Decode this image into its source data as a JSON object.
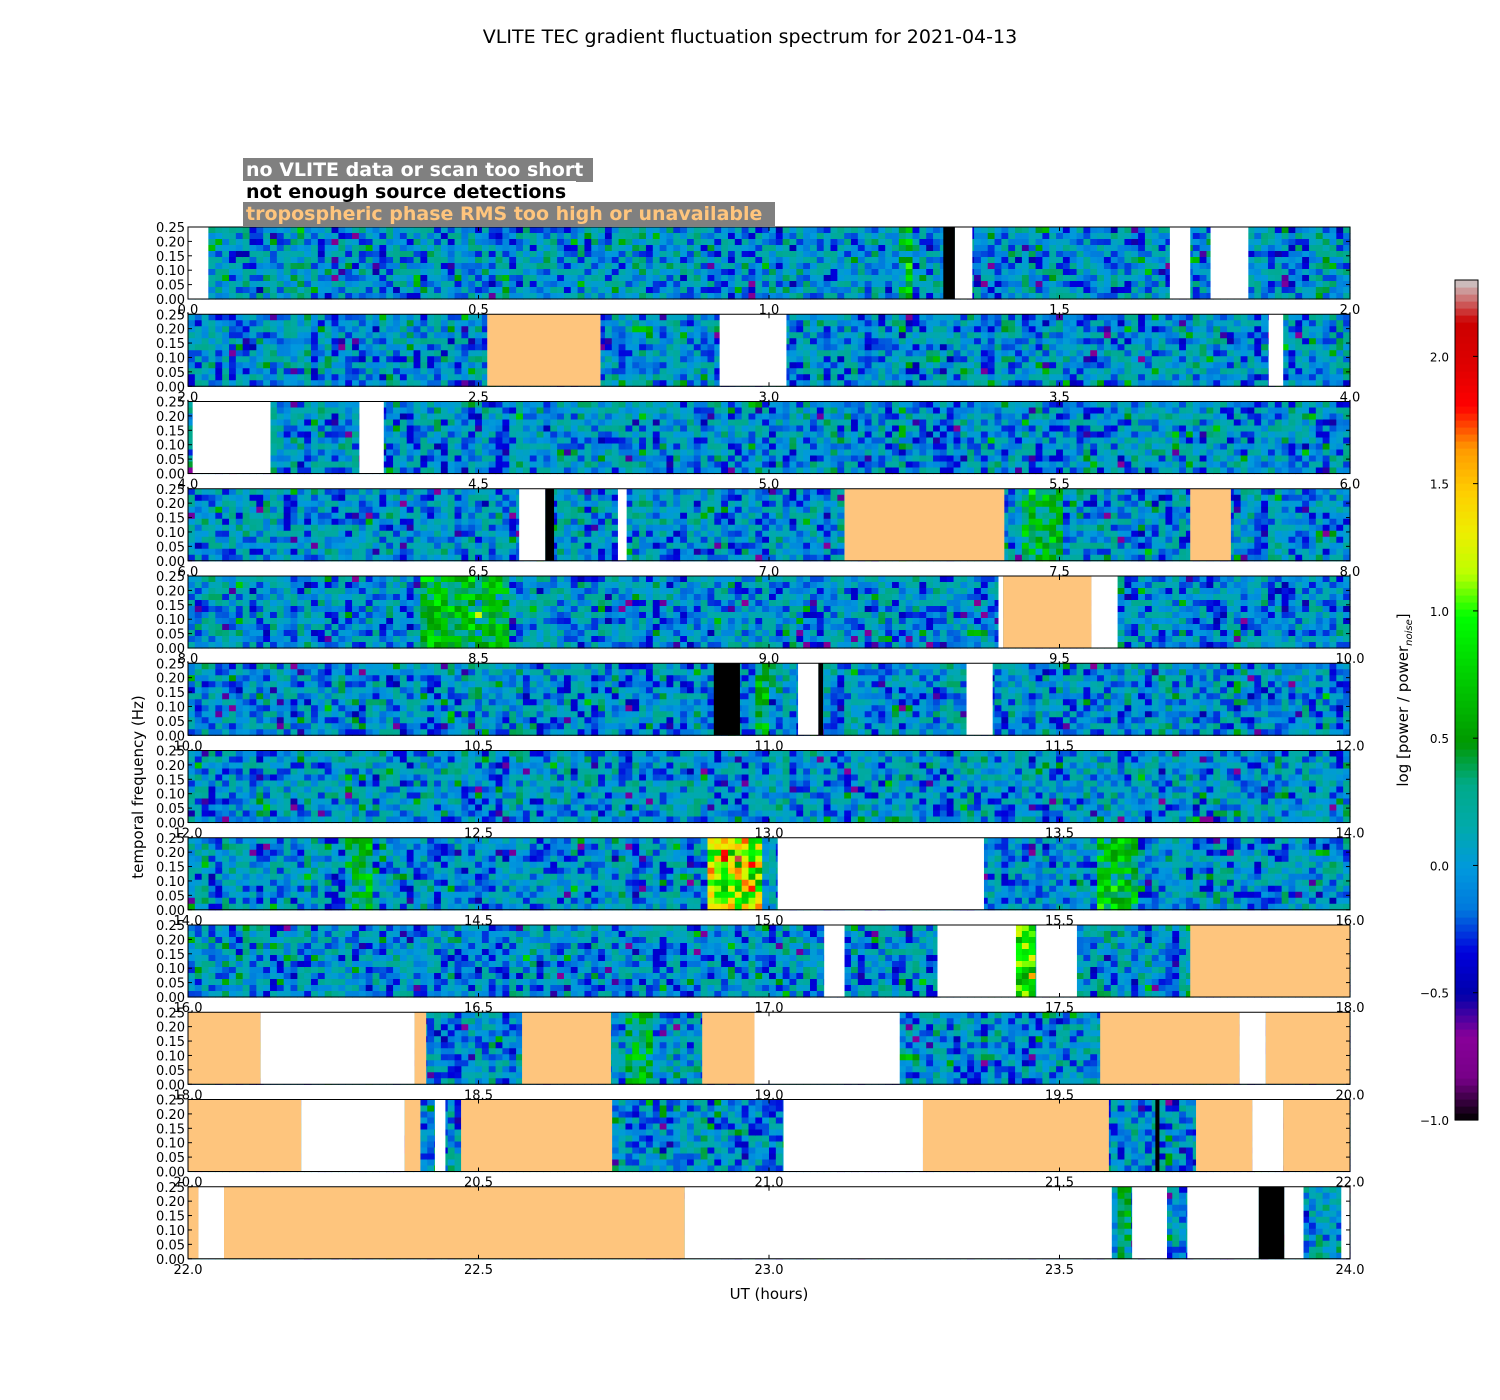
{
  "chart_data": {
    "type": "heatmap",
    "title": "VLITE TEC gradient fluctuation spectrum for 2021-04-13",
    "xlabel": "UT (hours)",
    "ylabel": "temporal frequency (Hz)",
    "ylim": [
      0,
      0.25
    ],
    "y_ticks": [
      "0.00",
      "0.05",
      "0.10",
      "0.15",
      "0.20",
      "0.25"
    ],
    "colorbar": {
      "label": "log [power / power",
      "label_subscript": "noise",
      "label_end": "]",
      "range": [
        -1.0,
        2.3
      ],
      "ticks": [
        "−1.0",
        "−0.5",
        "0.0",
        "0.5",
        "1.0",
        "1.5",
        "2.0"
      ],
      "colormap": "nipy_spectral"
    },
    "legend": [
      {
        "label": "no VLITE data or scan too short",
        "text_color": "#ffffff",
        "box_color": "#808080"
      },
      {
        "label": "not enough source detections",
        "text_color": "#000000",
        "box_color": "#ffffff"
      },
      {
        "label": "tropospheric phase RMS too high or unavailable",
        "text_color": "#ffc57d",
        "box_color": "#808080"
      }
    ],
    "flag_colors": {
      "no_data": "#ffffff",
      "few_detections": "#000000",
      "tropo_rms": "#fec57d"
    },
    "panels": [
      {
        "x_ticks": [
          "0.0",
          "0.5",
          "1.0",
          "1.5",
          "2.0"
        ],
        "range": [
          0,
          2
        ],
        "flags": [
          [
            0.0,
            0.035,
            "no_data"
          ],
          [
            1.3,
            1.32,
            "few_detections"
          ],
          [
            1.32,
            1.35,
            "no_data"
          ],
          [
            1.69,
            1.725,
            "no_data"
          ],
          [
            1.76,
            1.825,
            "no_data"
          ]
        ]
      },
      {
        "x_ticks": [
          "2.0",
          "2.5",
          "3.0",
          "3.5",
          "4.0"
        ],
        "range": [
          2,
          4
        ],
        "flags": [
          [
            2.515,
            2.71,
            "tropo_rms"
          ],
          [
            2.915,
            3.03,
            "no_data"
          ],
          [
            3.86,
            3.885,
            "no_data"
          ]
        ]
      },
      {
        "x_ticks": [
          "4.0",
          "4.5",
          "5.0",
          "5.5",
          "6.0"
        ],
        "range": [
          4,
          6
        ],
        "flags": [
          [
            4.008,
            4.142,
            "no_data"
          ],
          [
            4.295,
            4.337,
            "no_data"
          ]
        ]
      },
      {
        "x_ticks": [
          "6.0",
          "6.5",
          "7.0",
          "7.5",
          "8.0"
        ],
        "range": [
          6,
          8
        ],
        "flags": [
          [
            6.57,
            6.615,
            "no_data"
          ],
          [
            6.615,
            6.63,
            "few_detections"
          ],
          [
            6.74,
            6.755,
            "no_data"
          ],
          [
            7.13,
            7.405,
            "tropo_rms"
          ],
          [
            7.725,
            7.795,
            "tropo_rms"
          ]
        ]
      },
      {
        "x_ticks": [
          "8.0",
          "8.5",
          "9.0",
          "9.5",
          "10.0"
        ],
        "range": [
          8,
          10
        ],
        "flags": [
          [
            9.395,
            9.403,
            "no_data"
          ],
          [
            9.403,
            9.555,
            "tropo_rms"
          ],
          [
            9.555,
            9.6,
            "no_data"
          ]
        ]
      },
      {
        "x_ticks": [
          "10.0",
          "10.5",
          "11.0",
          "11.5",
          "12.0"
        ],
        "range": [
          10,
          12
        ],
        "flags": [
          [
            10.905,
            10.95,
            "few_detections"
          ],
          [
            11.05,
            11.085,
            "no_data"
          ],
          [
            11.085,
            11.093,
            "few_detections"
          ],
          [
            11.34,
            11.385,
            "no_data"
          ]
        ]
      },
      {
        "x_ticks": [
          "12.0",
          "12.5",
          "13.0",
          "13.5",
          "14.0"
        ],
        "range": [
          12,
          14
        ],
        "flags": []
      },
      {
        "x_ticks": [
          "14.0",
          "14.5",
          "15.0",
          "15.5",
          "16.0"
        ],
        "range": [
          14,
          16
        ],
        "flags": [
          [
            15.015,
            15.37,
            "no_data"
          ]
        ]
      },
      {
        "x_ticks": [
          "16.0",
          "16.5",
          "17.0",
          "17.5",
          "18.0"
        ],
        "range": [
          16,
          18
        ],
        "flags": [
          [
            17.095,
            17.13,
            "no_data"
          ],
          [
            17.29,
            17.425,
            "no_data"
          ],
          [
            17.46,
            17.53,
            "no_data"
          ],
          [
            17.725,
            18.0,
            "tropo_rms"
          ]
        ]
      },
      {
        "x_ticks": [
          "18.0",
          "18.5",
          "19.0",
          "19.5",
          "20.0"
        ],
        "range": [
          18,
          20
        ],
        "flags": [
          [
            18.0,
            18.125,
            "tropo_rms"
          ],
          [
            18.125,
            18.39,
            "no_data"
          ],
          [
            18.39,
            18.41,
            "tropo_rms"
          ],
          [
            18.575,
            18.728,
            "tropo_rms"
          ],
          [
            18.885,
            18.975,
            "tropo_rms"
          ],
          [
            18.975,
            19.225,
            "no_data"
          ],
          [
            19.57,
            19.81,
            "tropo_rms"
          ],
          [
            19.81,
            19.855,
            "no_data"
          ],
          [
            19.855,
            20.0,
            "tropo_rms"
          ]
        ]
      },
      {
        "x_ticks": [
          "20.0",
          "20.5",
          "21.0",
          "21.5",
          "22.0"
        ],
        "range": [
          20,
          22
        ],
        "flags": [
          [
            20.0,
            20.195,
            "tropo_rms"
          ],
          [
            20.195,
            20.373,
            "no_data"
          ],
          [
            20.373,
            20.4,
            "tropo_rms"
          ],
          [
            20.425,
            20.443,
            "no_data"
          ],
          [
            20.47,
            20.73,
            "tropo_rms"
          ],
          [
            21.025,
            21.265,
            "no_data"
          ],
          [
            21.265,
            21.585,
            "tropo_rms"
          ],
          [
            21.665,
            21.672,
            "few_detections"
          ],
          [
            21.735,
            21.832,
            "tropo_rms"
          ],
          [
            21.832,
            21.885,
            "no_data"
          ],
          [
            21.885,
            22.0,
            "tropo_rms"
          ]
        ]
      },
      {
        "x_ticks": [
          "22.0",
          "22.5",
          "23.0",
          "23.5",
          "24.0"
        ],
        "range": [
          22,
          24
        ],
        "flags": [
          [
            22.0,
            22.018,
            "tropo_rms"
          ],
          [
            22.018,
            22.062,
            "no_data"
          ],
          [
            22.062,
            22.855,
            "tropo_rms"
          ],
          [
            22.855,
            23.59,
            "no_data"
          ],
          [
            23.625,
            23.685,
            "no_data"
          ],
          [
            23.72,
            23.843,
            "no_data"
          ],
          [
            23.843,
            23.887,
            "few_detections"
          ],
          [
            23.887,
            23.92,
            "no_data"
          ],
          [
            23.985,
            24.0,
            "no_data"
          ]
        ]
      }
    ],
    "elevated_power": [
      {
        "panel": 7,
        "range": [
          14.9,
          14.99
        ],
        "level": 1.4
      },
      {
        "panel": 7,
        "range": [
          14.27,
          14.32
        ],
        "level": 0.5
      },
      {
        "panel": 7,
        "range": [
          15.57,
          15.64
        ],
        "level": 0.55
      },
      {
        "panel": 4,
        "range": [
          8.4,
          8.55
        ],
        "level": 0.6
      },
      {
        "panel": 3,
        "range": [
          7.44,
          7.5
        ],
        "level": 0.55
      },
      {
        "panel": 9,
        "range": [
          18.75,
          18.8
        ],
        "level": 0.5
      },
      {
        "panel": 8,
        "range": [
          17.42,
          17.46
        ],
        "level": 0.9
      },
      {
        "panel": 5,
        "range": [
          10.98,
          11.0
        ],
        "level": 0.5
      },
      {
        "panel": 0,
        "range": [
          1.22,
          1.25
        ],
        "level": 0.45
      },
      {
        "panel": 11,
        "range": [
          23.6,
          23.625
        ],
        "level": 0.55
      }
    ]
  }
}
